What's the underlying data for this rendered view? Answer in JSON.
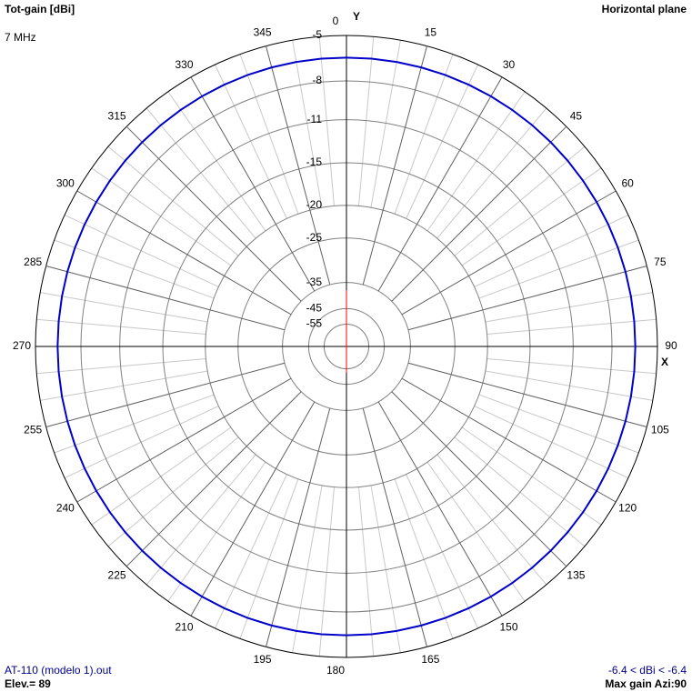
{
  "chart_data": {
    "type": "polar",
    "title": "Tot-gain [dBi]",
    "subtitle": "7 MHz",
    "plane": "Horizontal plane",
    "y_axis_label": "Y",
    "x_axis_label": "X",
    "file": "AT-110 (modelo 1).out",
    "elevation": "Elev.= 89",
    "range_note": "-6.4 < dBi < -6.4",
    "max_gain_note": "Max gain Azi:90",
    "rticks": [
      -5,
      -8,
      -11,
      -15,
      -20,
      -25,
      -35,
      -45,
      -55
    ],
    "thetaticks": [
      0,
      15,
      30,
      45,
      60,
      75,
      90,
      105,
      120,
      135,
      150,
      165,
      180,
      195,
      210,
      225,
      240,
      255,
      270,
      285,
      300,
      315,
      330,
      345
    ],
    "grid": true,
    "series": [
      {
        "color": "#0000c8",
        "theta": [
          0,
          5,
          10,
          15,
          20,
          25,
          30,
          35,
          40,
          45,
          50,
          55,
          60,
          65,
          70,
          75,
          80,
          85,
          90,
          95,
          100,
          105,
          110,
          115,
          120,
          125,
          130,
          135,
          140,
          145,
          150,
          155,
          160,
          165,
          170,
          175,
          180,
          185,
          190,
          195,
          200,
          205,
          210,
          215,
          220,
          225,
          230,
          235,
          240,
          245,
          250,
          255,
          260,
          265,
          270,
          275,
          280,
          285,
          290,
          295,
          300,
          305,
          310,
          315,
          320,
          325,
          330,
          335,
          340,
          345,
          350,
          355
        ],
        "values": [
          -6.4,
          -6.4,
          -6.4,
          -6.4,
          -6.4,
          -6.4,
          -6.4,
          -6.4,
          -6.4,
          -6.4,
          -6.4,
          -6.4,
          -6.4,
          -6.4,
          -6.4,
          -6.4,
          -6.4,
          -6.4,
          -6.4,
          -6.4,
          -6.4,
          -6.4,
          -6.4,
          -6.4,
          -6.4,
          -6.4,
          -6.4,
          -6.4,
          -6.4,
          -6.4,
          -6.4,
          -6.4,
          -6.4,
          -6.4,
          -6.4,
          -6.4,
          -6.4,
          -6.4,
          -6.4,
          -6.4,
          -6.4,
          -6.4,
          -6.4,
          -6.4,
          -6.4,
          -6.4,
          -6.4,
          -6.4,
          -6.4,
          -6.4,
          -6.4,
          -6.4,
          -6.4,
          -6.4,
          -6.4,
          -6.4,
          -6.4,
          -6.4,
          -6.4,
          -6.4,
          -6.4,
          -6.4,
          -6.4,
          -6.4,
          -6.4,
          -6.4,
          -6.4,
          -6.4,
          -6.4,
          -6.4,
          -6.4,
          -6.4
        ]
      }
    ]
  }
}
